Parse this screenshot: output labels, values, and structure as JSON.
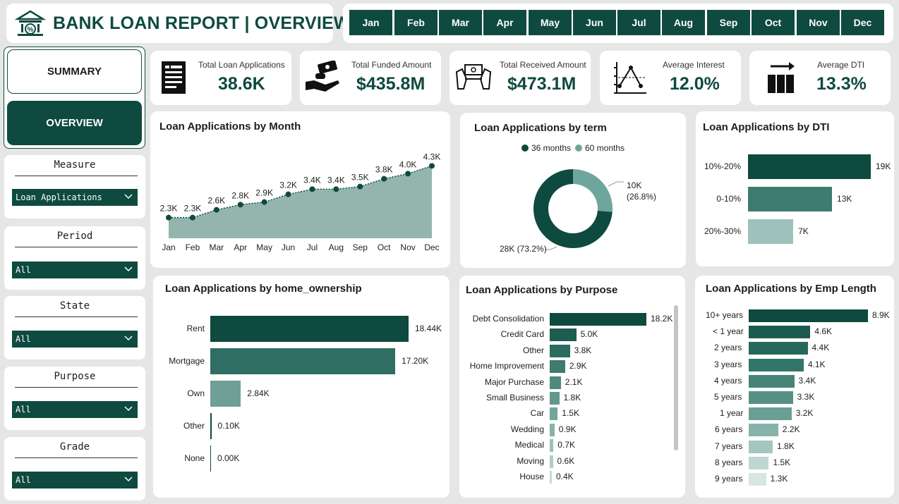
{
  "header": {
    "title": "BANK LOAN REPORT | OVERVIEW"
  },
  "months": [
    "Jan",
    "Feb",
    "Mar",
    "Apr",
    "May",
    "Jun",
    "Jul",
    "Aug",
    "Sep",
    "Oct",
    "Nov",
    "Dec"
  ],
  "nav": {
    "summary": "SUMMARY",
    "overview": "OVERVIEW"
  },
  "slicers": [
    {
      "title": "Measure",
      "value": "Loan Applications"
    },
    {
      "title": "Period",
      "value": "All"
    },
    {
      "title": "State",
      "value": "All"
    },
    {
      "title": "Purpose",
      "value": "All"
    },
    {
      "title": "Grade",
      "value": "All"
    }
  ],
  "kpis": [
    {
      "label": "Total Loan Applications",
      "value": "38.6K",
      "icon": "document-icon"
    },
    {
      "label": "Total Funded Amount",
      "value": "$435.8M",
      "icon": "money-hand-icon"
    },
    {
      "label": "Total Received Amount",
      "value": "$473.1M",
      "icon": "cash-hands-icon"
    },
    {
      "label": "Average Interest",
      "value": "12.0%",
      "icon": "interest-chart-icon"
    },
    {
      "label": "Average DTI",
      "value": "13.3%",
      "icon": "dti-bars-icon"
    }
  ],
  "colors": {
    "primary": "#0e4a3f",
    "mid": "#3e7b70",
    "light": "#9fc1bb",
    "area": "#93b5ae"
  },
  "chart_data": [
    {
      "type": "area",
      "title": "Loan Applications by Month",
      "categories": [
        "Jan",
        "Feb",
        "Mar",
        "Apr",
        "May",
        "Jun",
        "Jul",
        "Aug",
        "Sep",
        "Oct",
        "Nov",
        "Dec"
      ],
      "values": [
        2.3,
        2.3,
        2.6,
        2.8,
        2.9,
        3.2,
        3.4,
        3.4,
        3.5,
        3.8,
        4.0,
        4.3
      ],
      "labels": [
        "2.3K",
        "2.3K",
        "2.6K",
        "2.8K",
        "2.9K",
        "3.2K",
        "3.4K",
        "3.4K",
        "3.5K",
        "3.8K",
        "4.0K",
        "4.3K"
      ]
    },
    {
      "type": "pie",
      "title": "Loan Applications by term",
      "legend": [
        "36 months",
        "60 months"
      ],
      "values": [
        28,
        10
      ],
      "labels": [
        "28K (73.2%)",
        "10K (26.8%)"
      ]
    },
    {
      "type": "bar",
      "title": "Loan Applications by DTI",
      "categories": [
        "10%-20%",
        "0-10%",
        "20%-30%"
      ],
      "values": [
        19,
        13,
        7
      ],
      "labels": [
        "19K",
        "13K",
        "7K"
      ]
    },
    {
      "type": "bar",
      "title": "Loan Applications by home_ownership",
      "categories": [
        "Rent",
        "Mortgage",
        "Own",
        "Other",
        "None"
      ],
      "values": [
        18.44,
        17.2,
        2.84,
        0.1,
        0.0
      ],
      "labels": [
        "18.44K",
        "17.20K",
        "2.84K",
        "0.10K",
        "0.00K"
      ]
    },
    {
      "type": "bar",
      "title": "Loan Applications by Purpose",
      "categories": [
        "Debt Consolidation",
        "Credit Card",
        "Other",
        "Home Improvement",
        "Major Purchase",
        "Small Business",
        "Car",
        "Wedding",
        "Medical",
        "Moving",
        "House"
      ],
      "values": [
        18.2,
        5.0,
        3.8,
        2.9,
        2.1,
        1.8,
        1.5,
        0.9,
        0.7,
        0.6,
        0.4
      ],
      "labels": [
        "18.2K",
        "5.0K",
        "3.8K",
        "2.9K",
        "2.1K",
        "1.8K",
        "1.5K",
        "0.9K",
        "0.7K",
        "0.6K",
        "0.4K"
      ]
    },
    {
      "type": "bar",
      "title": "Loan Applications by Emp Length",
      "categories": [
        "10+ years",
        "< 1 year",
        "2 years",
        "3 years",
        "4 years",
        "5 years",
        "1 year",
        "6 years",
        "7 years",
        "8 years",
        "9 years"
      ],
      "values": [
        8.9,
        4.6,
        4.4,
        4.1,
        3.4,
        3.3,
        3.2,
        2.2,
        1.8,
        1.5,
        1.3
      ],
      "labels": [
        "8.9K",
        "4.6K",
        "4.4K",
        "4.1K",
        "3.4K",
        "3.3K",
        "3.2K",
        "2.2K",
        "1.8K",
        "1.5K",
        "1.3K"
      ]
    }
  ]
}
